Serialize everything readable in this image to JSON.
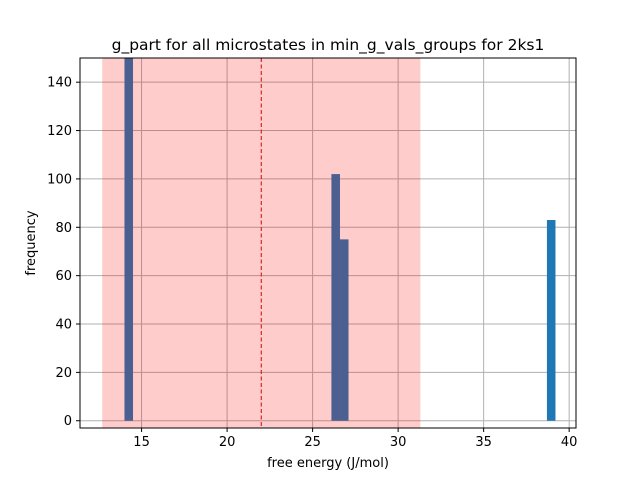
{
  "chart_data": {
    "type": "bar",
    "title": "g_part for all microstates in min_g_vals_groups for 2ks1",
    "xlabel": "free energy (J/mol)",
    "ylabel": "frequency",
    "xlim": [
      11.4,
      40.4
    ],
    "ylim": [
      -3,
      150
    ],
    "xticks": [
      15,
      20,
      25,
      30,
      35,
      40
    ],
    "yticks": [
      0,
      20,
      40,
      60,
      80,
      100,
      120,
      140
    ],
    "grid": true,
    "bins": [
      {
        "x0": 14.0,
        "x1": 14.5,
        "value": 150
      },
      {
        "x0": 26.1,
        "x1": 26.6,
        "value": 102
      },
      {
        "x0": 26.6,
        "x1": 27.1,
        "value": 75
      },
      {
        "x0": 38.7,
        "x1": 39.2,
        "value": 83
      }
    ],
    "shaded_band": {
      "x0": 12.7,
      "x1": 31.3
    },
    "mean_line": 22.0,
    "colors": {
      "bar": "#1f77b4",
      "band": "#ff0000",
      "band_alpha": 0.2,
      "mean_line": "#d62728",
      "grid": "#b0b0b0"
    }
  }
}
